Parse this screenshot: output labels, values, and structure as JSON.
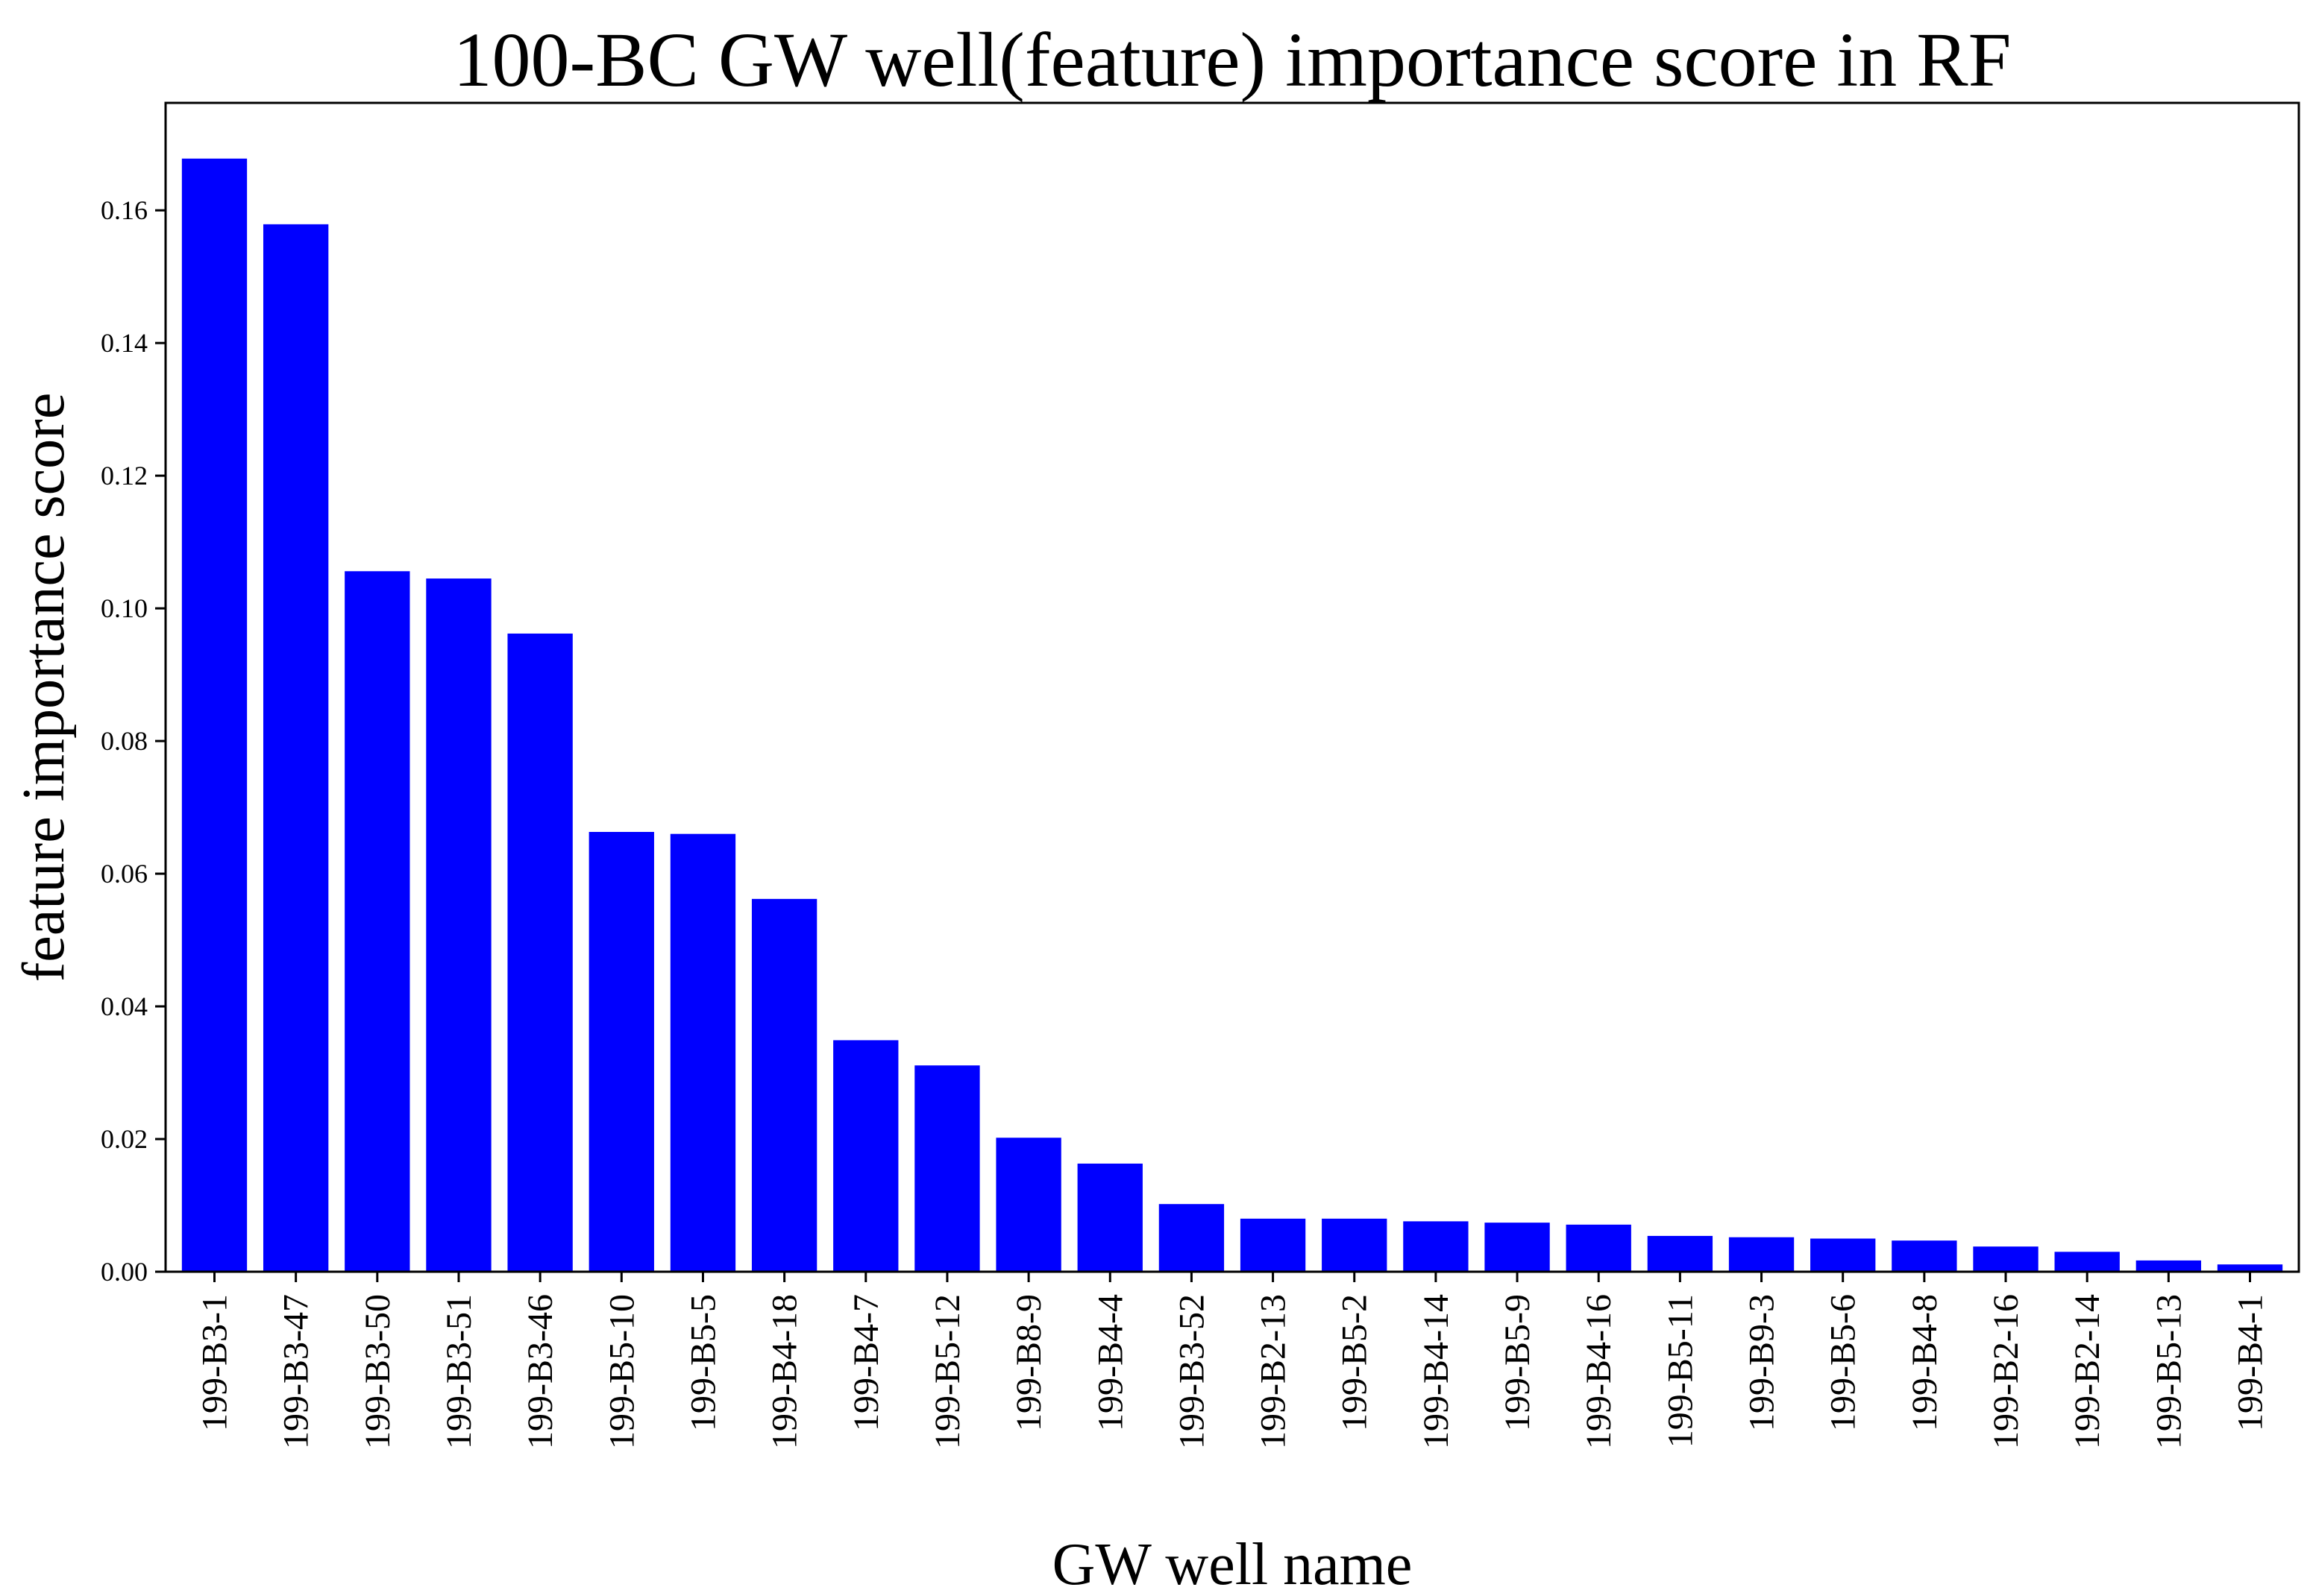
{
  "chart_data": {
    "type": "bar",
    "title": "100-BC GW well(feature) importance score in RF",
    "xlabel": "GW well name",
    "ylabel": "feature importance score",
    "categories": [
      "199-B3-1",
      "199-B3-47",
      "199-B3-50",
      "199-B3-51",
      "199-B3-46",
      "199-B5-10",
      "199-B5-5",
      "199-B4-18",
      "199-B4-7",
      "199-B5-12",
      "199-B8-9",
      "199-B4-4",
      "199-B3-52",
      "199-B2-13",
      "199-B5-2",
      "199-B4-14",
      "199-B5-9",
      "199-B4-16",
      "199-B5-11",
      "199-B9-3",
      "199-B5-6",
      "199-B4-8",
      "199-B2-16",
      "199-B2-14",
      "199-B5-13",
      "199-B4-1"
    ],
    "values": [
      0.1678,
      0.1579,
      0.1056,
      0.1045,
      0.0962,
      0.0663,
      0.066,
      0.0562,
      0.0349,
      0.0311,
      0.0202,
      0.0163,
      0.0102,
      0.008,
      0.008,
      0.0076,
      0.0074,
      0.0071,
      0.0054,
      0.0052,
      0.005,
      0.0047,
      0.0038,
      0.003,
      0.0017,
      0.0011
    ],
    "ylim": [
      0.0,
      0.1762
    ],
    "yticks": [
      "0.00",
      "0.02",
      "0.04",
      "0.06",
      "0.08",
      "0.10",
      "0.12",
      "0.14",
      "0.16"
    ],
    "bar_color": "#0000ff",
    "grid": false,
    "legend": "none"
  }
}
